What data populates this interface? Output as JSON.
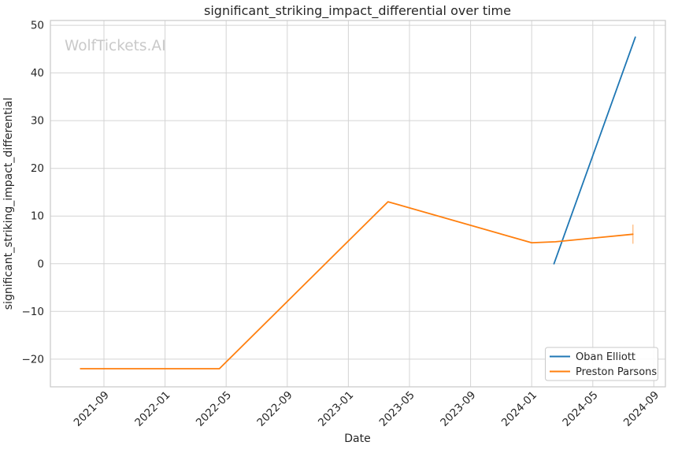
{
  "figure": {
    "watermark": "WolfTickets.AI"
  },
  "chart_data": {
    "type": "line",
    "title": "significant_striking_impact_differential over time",
    "xlabel": "Date",
    "ylabel": "significant_striking_impact_differential",
    "x_tick_labels": [
      "2021-09",
      "2022-01",
      "2022-05",
      "2022-09",
      "2023-01",
      "2023-05",
      "2023-09",
      "2024-01",
      "2024-05",
      "2024-09"
    ],
    "y_ticks": [
      -20,
      -10,
      0,
      10,
      20,
      30,
      40,
      50
    ],
    "xlim": [
      "2021-05-16",
      "2024-09-24"
    ],
    "ylim": [
      -25.8,
      51.0
    ],
    "grid": true,
    "legend": {
      "position": "lower right",
      "entries": [
        "Oban Elliott",
        "Preston Parsons"
      ]
    },
    "series": [
      {
        "name": "Oban Elliott",
        "color": "#1f77b4",
        "points": [
          [
            "2024-02-15",
            0.0
          ],
          [
            "2024-07-25",
            47.5
          ]
        ]
      },
      {
        "name": "Preston Parsons",
        "color": "#ff7f0e",
        "points": [
          [
            "2021-07-15",
            -22.0
          ],
          [
            "2022-04-18",
            -22.0
          ],
          [
            "2023-03-19",
            13.0
          ],
          [
            "2024-01-01",
            4.4
          ],
          [
            "2024-02-18",
            4.6
          ],
          [
            "2024-07-20",
            6.2
          ]
        ],
        "error_bars": [
          {
            "x": "2024-07-20",
            "y": 6.2,
            "yerr": 2.0
          }
        ]
      }
    ],
    "colors": {
      "grid": "#d4d4d4",
      "spine": "#c9c9c9",
      "text": "#262626",
      "watermark": "#c9c9c9",
      "background": "#ffffff"
    }
  }
}
